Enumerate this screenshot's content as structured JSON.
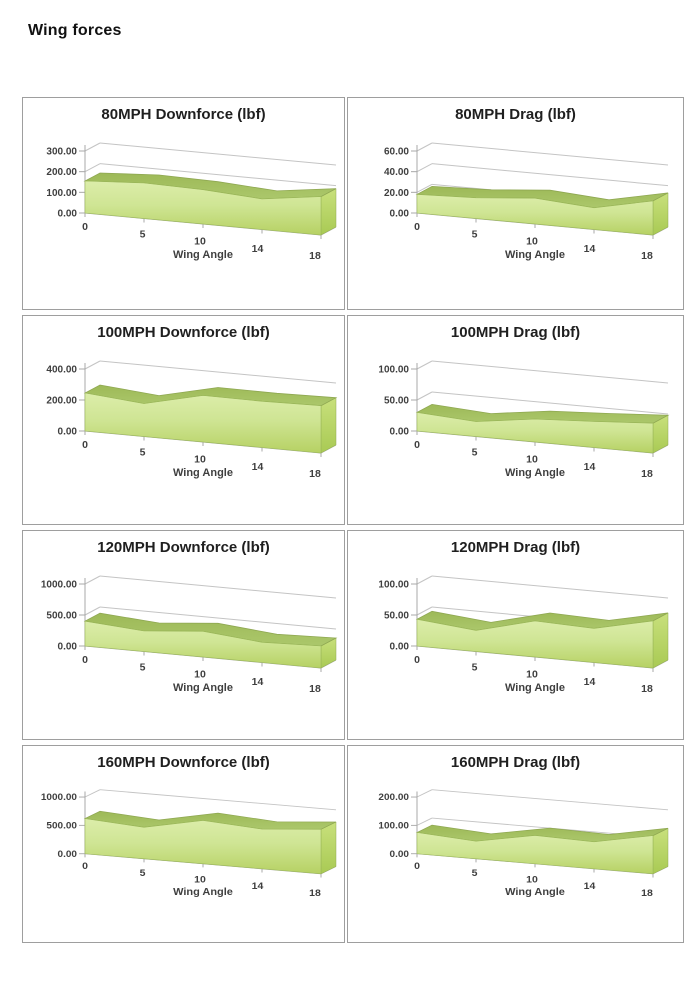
{
  "page": {
    "title": "Wing forces"
  },
  "palette": {
    "area_face_top": "#dcedaa",
    "area_face_bottom": "#b6d163",
    "area_top_surface": "#a4c164",
    "area_side_cap_top": "#c8e07c",
    "area_side_cap_bottom": "#a9ca54",
    "area_edge": "#8fa852",
    "gridline": "#c4c4c4",
    "axis": "#a8a8a8",
    "label_text": "#3f3f3f",
    "box_border": "#9e9e9e"
  },
  "chart_data": [
    {
      "type": "area",
      "title": "80MPH Downforce (lbf)",
      "xlabel": "Wing Angle",
      "categories": [
        "0",
        "5",
        "10",
        "14",
        "18"
      ],
      "values": [
        155,
        172,
        166,
        148,
        186
      ],
      "yticks": [
        "0.00",
        "100.00",
        "200.00",
        "300.00"
      ],
      "ylim": [
        0,
        300
      ],
      "grid": true,
      "legend": "none"
    },
    {
      "type": "area",
      "title": "80MPH Drag (lbf)",
      "xlabel": "Wing Angle",
      "categories": [
        "0",
        "5",
        "10",
        "14",
        "18"
      ],
      "values": [
        18,
        20,
        25,
        21,
        33
      ],
      "yticks": [
        "0.00",
        "20.00",
        "40.00",
        "60.00"
      ],
      "ylim": [
        0,
        60
      ],
      "grid": true,
      "legend": "none"
    },
    {
      "type": "area",
      "title": "100MPH Downforce (lbf)",
      "xlabel": "Wing Angle",
      "categories": [
        "0",
        "5",
        "10",
        "14",
        "18"
      ],
      "values": [
        245,
        212,
        300,
        298,
        305
      ],
      "yticks": [
        "0.00",
        "200.00",
        "400.00"
      ],
      "ylim": [
        0,
        400
      ],
      "grid": true,
      "legend": "none"
    },
    {
      "type": "area",
      "title": "100MPH Drag (lbf)",
      "xlabel": "Wing Angle",
      "categories": [
        "0",
        "5",
        "10",
        "14",
        "18"
      ],
      "values": [
        30,
        24,
        37,
        42,
        48
      ],
      "yticks": [
        "0.00",
        "50.00",
        "100.00"
      ],
      "ylim": [
        0,
        100
      ],
      "grid": true,
      "legend": "none"
    },
    {
      "type": "area",
      "title": "120MPH Downforce (lbf)",
      "xlabel": "Wing Angle",
      "categories": [
        "0",
        "5",
        "10",
        "14",
        "18"
      ],
      "values": [
        400,
        330,
        415,
        325,
        355
      ],
      "yticks": [
        "0.00",
        "500.00",
        "1000.00"
      ],
      "ylim": [
        0,
        1000
      ],
      "grid": true,
      "legend": "none"
    },
    {
      "type": "area",
      "title": "120MPH Drag (lbf)",
      "xlabel": "Wing Angle",
      "categories": [
        "0",
        "5",
        "10",
        "14",
        "18"
      ],
      "values": [
        43,
        34,
        58,
        55,
        76
      ],
      "yticks": [
        "0.00",
        "50.00",
        "100.00"
      ],
      "ylim": [
        0,
        100
      ],
      "grid": true,
      "legend": "none"
    },
    {
      "type": "area",
      "title": "160MPH Downforce (lbf)",
      "xlabel": "Wing Angle",
      "categories": [
        "0",
        "5",
        "10",
        "14",
        "18"
      ],
      "values": [
        620,
        555,
        765,
        700,
        785
      ],
      "yticks": [
        "0.00",
        "500.00",
        "1000.00"
      ],
      "ylim": [
        0,
        1000
      ],
      "grid": true,
      "legend": "none"
    },
    {
      "type": "area",
      "title": "160MPH Drag (lbf)",
      "xlabel": "Wing Angle",
      "categories": [
        "0",
        "5",
        "10",
        "14",
        "18"
      ],
      "values": [
        75,
        62,
        100,
        95,
        135
      ],
      "yticks": [
        "0.00",
        "100.00",
        "200.00"
      ],
      "ylim": [
        0,
        200
      ],
      "grid": true,
      "legend": "none"
    }
  ]
}
